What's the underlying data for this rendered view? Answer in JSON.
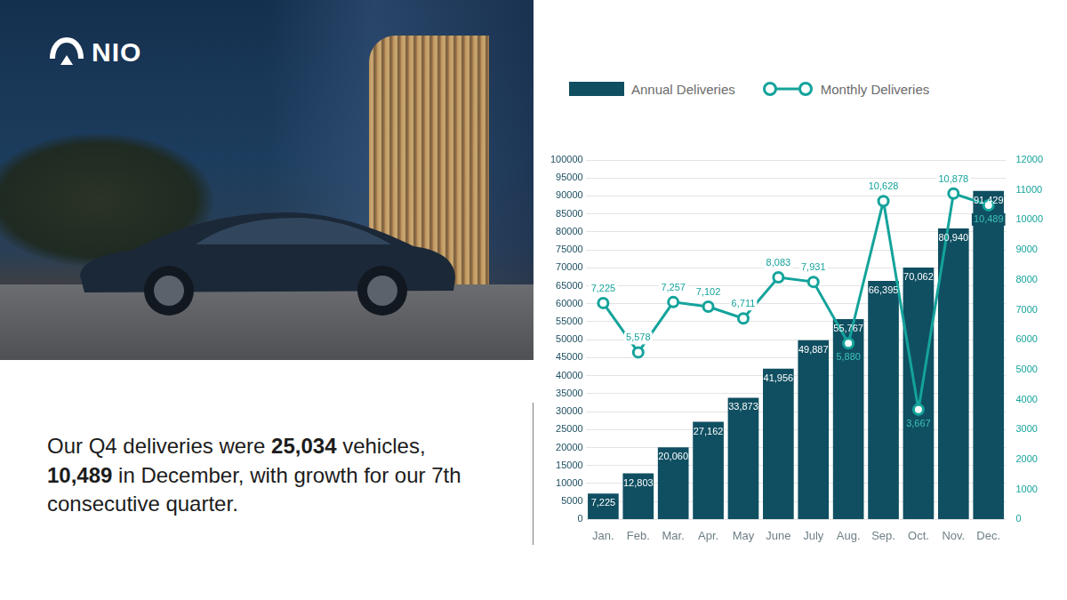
{
  "header": {
    "logo": "NIO"
  },
  "caption": {
    "text": "Our Q4 deliveries were 25,034 vehicles, 10,489 in December, with growth for our 7th consecutive quarter.",
    "bold": [
      "25,034",
      "10,489"
    ]
  },
  "chart_data": {
    "type": "bar",
    "categories": [
      "Jan.",
      "Feb.",
      "Mar.",
      "Apr.",
      "May",
      "June",
      "July",
      "Aug.",
      "Sep.",
      "Oct.",
      "Nov.",
      "Dec."
    ],
    "series": [
      {
        "name": "Annual Deliveries",
        "type": "bar",
        "color": "#0f4f61",
        "values": [
          7225,
          12803,
          20060,
          27162,
          33873,
          41956,
          49887,
          55767,
          66395,
          70062,
          80940,
          91429
        ],
        "value_labels": [
          "7,225",
          "12,803",
          "20,060",
          "27,162",
          "33,873",
          "41,956",
          "49,887",
          "55,767",
          "66,395",
          "70,062",
          "80,940",
          "91,429"
        ]
      },
      {
        "name": "Monthly Deliveries",
        "type": "line",
        "color": "#14a39b",
        "axis": "y2",
        "marker": "circle",
        "values": [
          7225,
          5578,
          7257,
          7102,
          6711,
          8083,
          7931,
          5880,
          10628,
          3667,
          10878,
          10489
        ],
        "value_labels": [
          "7,225",
          "5,578",
          "7,257",
          "7,102",
          "6,711",
          "8,083",
          "7,931",
          "5,880",
          "10,628",
          "3,667",
          "10,878",
          "10,489"
        ]
      }
    ],
    "ylim": [
      0,
      100000
    ],
    "yticks": [
      0,
      5000,
      10000,
      15000,
      20000,
      25000,
      30000,
      35000,
      40000,
      45000,
      50000,
      55000,
      60000,
      65000,
      70000,
      75000,
      80000,
      85000,
      90000,
      95000,
      100000
    ],
    "y2lim": [
      0,
      12000
    ],
    "y2ticks": [
      0,
      1000,
      2000,
      3000,
      4000,
      5000,
      6000,
      7000,
      8000,
      9000,
      10000,
      11000,
      12000
    ],
    "grid": true,
    "legend": "top",
    "data_labels": true
  }
}
